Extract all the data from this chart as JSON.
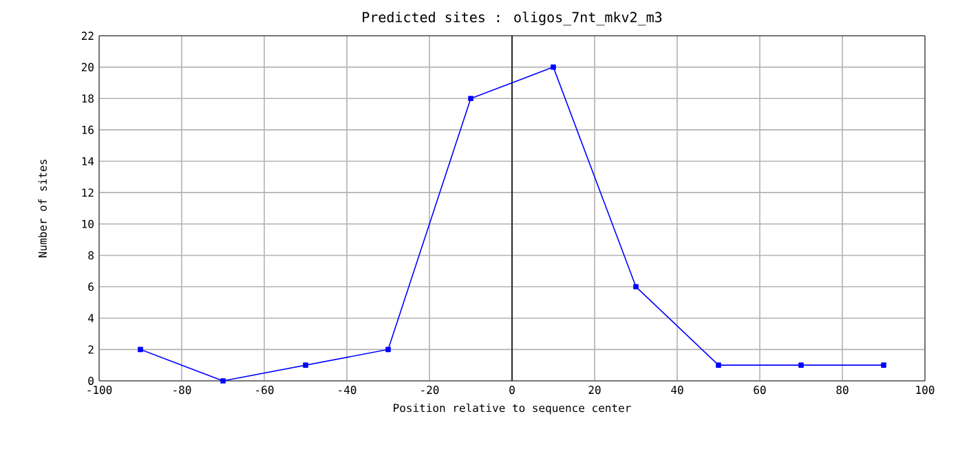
{
  "chart_data": {
    "type": "line",
    "title": "Predicted sites : oligos_7nt_mkv2_m3",
    "xlabel": "Position relative to sequence center",
    "ylabel": "Number of sites",
    "x": [
      -90,
      -70,
      -50,
      -30,
      -10,
      10,
      30,
      50,
      70,
      90
    ],
    "series": [
      {
        "color": "#0000ff",
        "values": [
          2,
          0,
          1,
          2,
          18,
          20,
          6,
          1,
          1,
          1
        ]
      }
    ],
    "xlim": [
      -100,
      100
    ],
    "xticks": [
      -100,
      -80,
      -60,
      -40,
      -20,
      0,
      20,
      40,
      60,
      80,
      100
    ],
    "ylim": [
      0,
      22
    ],
    "yticks": [
      0,
      2,
      4,
      6,
      8,
      10,
      12,
      14,
      16,
      18,
      20,
      22
    ],
    "ref_lines": [
      {
        "axis": "x",
        "value": 0,
        "color": "#000000"
      }
    ],
    "grid": true,
    "marker": "square",
    "line_style": "solid"
  }
}
